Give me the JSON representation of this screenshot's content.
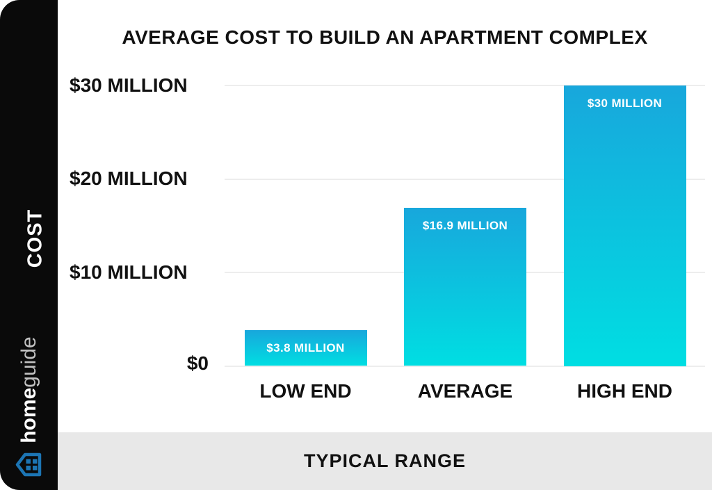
{
  "chart_data": {
    "type": "bar",
    "title": "AVERAGE COST TO BUILD AN APARTMENT COMPLEX",
    "categories": [
      "LOW END",
      "AVERAGE",
      "HIGH END"
    ],
    "values": [
      3.8,
      16.9,
      30
    ],
    "bar_labels": [
      "$3.8 MILLION",
      "$16.9 MILLION",
      "$30 MILLION"
    ],
    "yticks": [
      {
        "value": 0,
        "label": "$0"
      },
      {
        "value": 10,
        "label": "$10 MILLION"
      },
      {
        "value": 20,
        "label": "$20 MILLION"
      },
      {
        "value": 30,
        "label": "$30 MILLION"
      }
    ],
    "ylim": [
      0,
      30
    ],
    "grid": true,
    "legend_position": "none",
    "xlabel": "TYPICAL RANGE",
    "ylabel": "COST",
    "colors": {
      "bar_gradient_top": "#18A7DC",
      "bar_gradient_bottom": "#00DEE2",
      "bar_label_text": "#FFFFFF",
      "gridline": "#EDEDED",
      "text": "#111111",
      "sidebar_bg": "#0A0A0A",
      "footer_bg": "#E8E8E8",
      "brand_blue": "#1C75B4"
    }
  },
  "sidebar": {
    "axis_label": "COST",
    "brand_bold": "home",
    "brand_light": "guide",
    "logo_icon": "house-icon"
  },
  "footer": {
    "label": "TYPICAL RANGE"
  }
}
